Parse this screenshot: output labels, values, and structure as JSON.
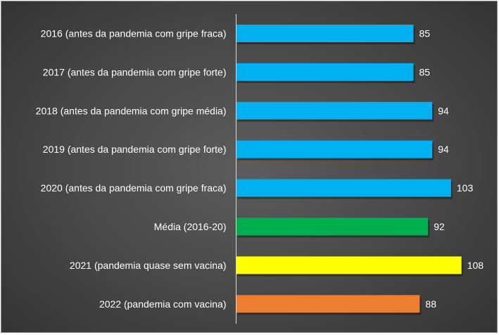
{
  "chart_data": {
    "type": "bar",
    "orientation": "horizontal",
    "title": "",
    "xlabel": "",
    "ylabel": "",
    "xlim": [
      0,
      115
    ],
    "grid": false,
    "legend": "none",
    "categories": [
      "2016 (antes da pandemia com gripe fraca)",
      "2017 (antes da pandemia com gripe forte)",
      "2018 (antes da pandemia com gripe média)",
      "2019 (antes da pandemia com gripe forte)",
      "2020 (antes da pandemia com gripe fraca)",
      "Média (2016-20)",
      "2021 (pandemia quase sem vacina)",
      "2022 (pandemia com vacina)"
    ],
    "values": [
      85,
      85,
      94,
      94,
      103,
      92,
      108,
      88
    ],
    "colors": [
      "#00b0f0",
      "#00b0f0",
      "#00b0f0",
      "#00b0f0",
      "#00b0f0",
      "#00b050",
      "#ffff00",
      "#ed7d31"
    ],
    "data_labels": [
      "85",
      "85",
      "94",
      "94",
      "103",
      "92",
      "108",
      "88"
    ]
  },
  "style": {
    "background": "#474747",
    "text_color": "#ffffff",
    "axis_color": "#d9d9d9"
  }
}
